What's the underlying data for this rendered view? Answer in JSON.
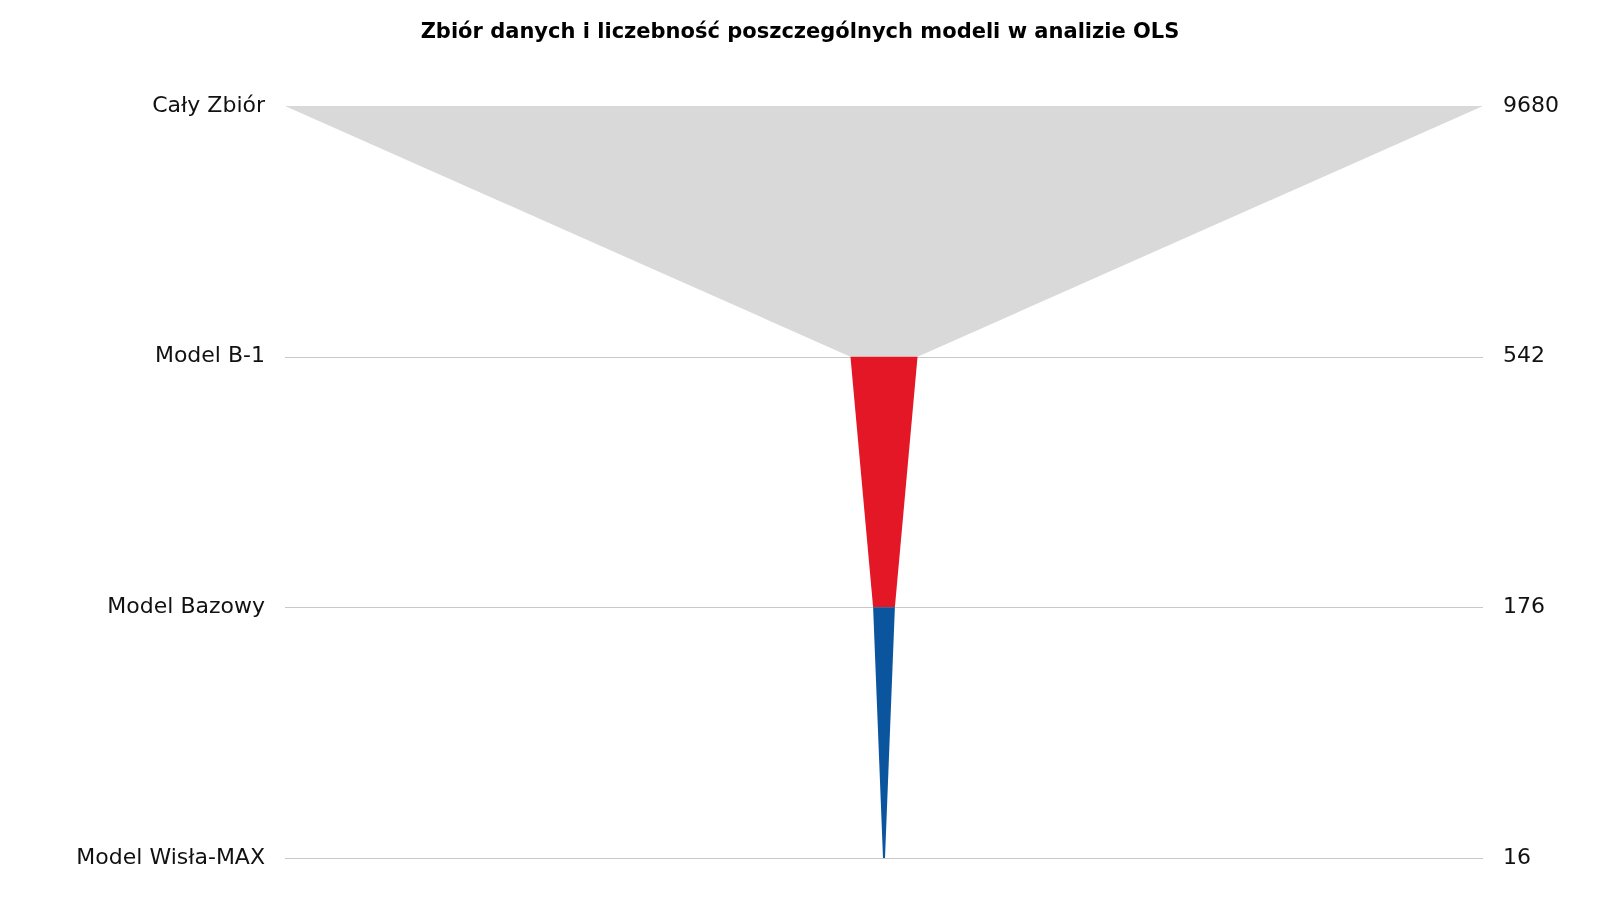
{
  "chart_data": {
    "type": "other",
    "title": "Zbiór danych i liczebność poszczególnych modeli w analizie OLS",
    "categories": [
      "Cały Zbiór",
      "Model B-1",
      "Model Bazowy",
      "Model Wisła-MAX"
    ],
    "values": [
      9680,
      542,
      176,
      16
    ],
    "colors": [
      "#d9d9d9",
      "#e31725",
      "#0b559f",
      "#0b559f"
    ],
    "data_labels": true
  }
}
